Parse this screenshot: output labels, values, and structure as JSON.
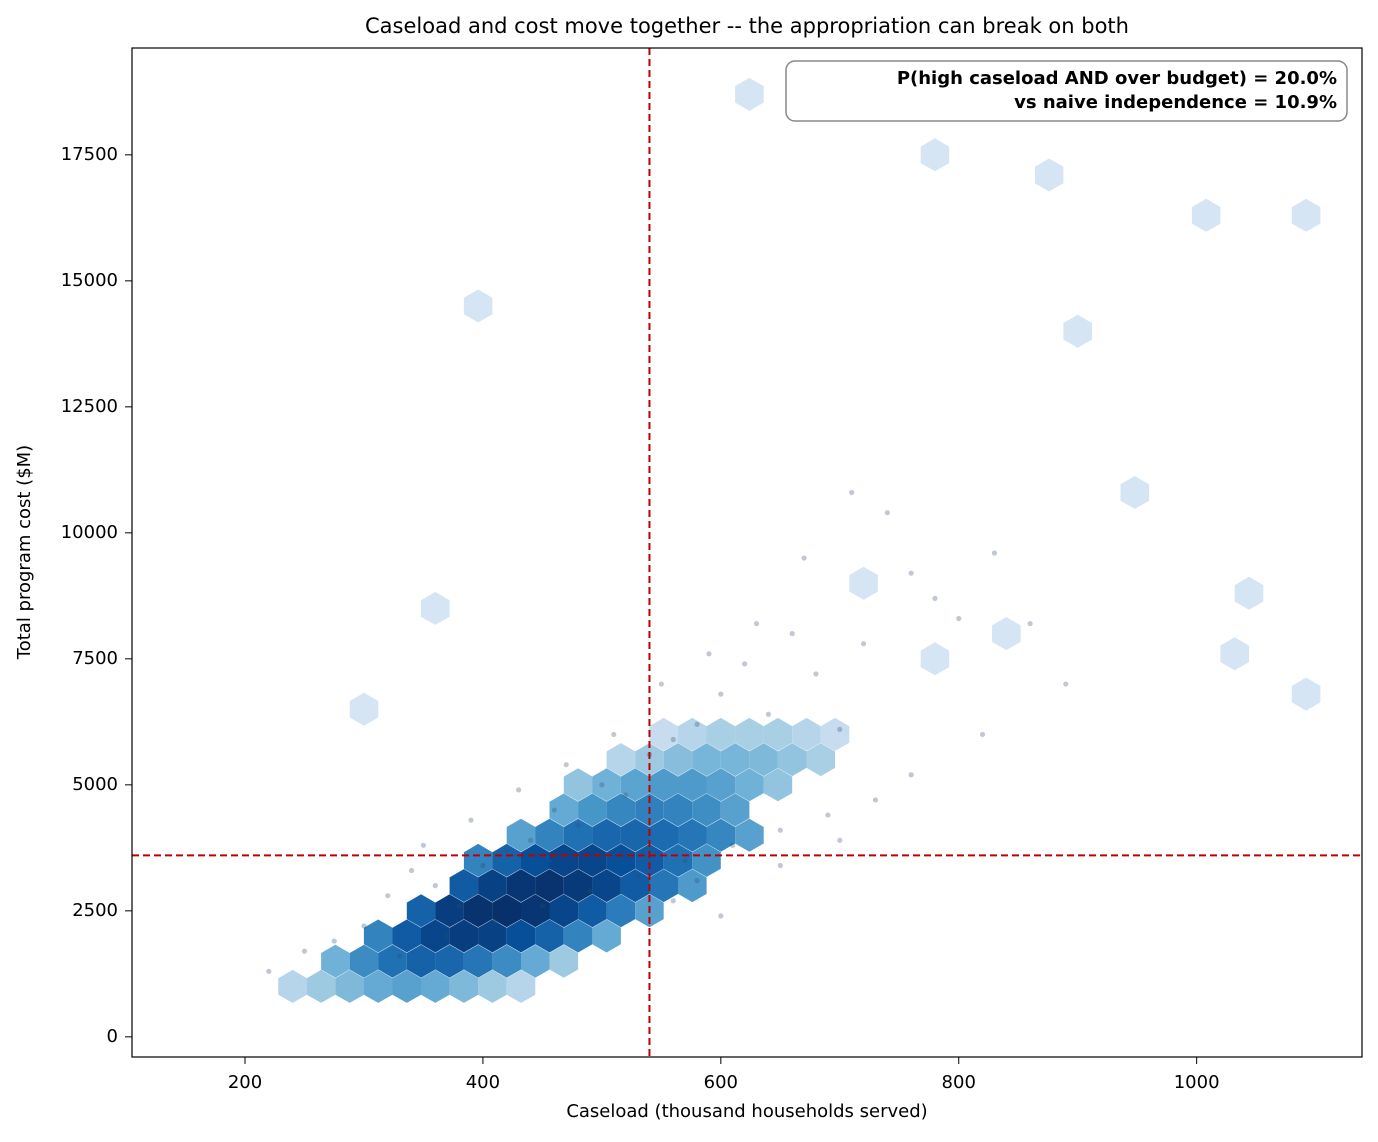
{
  "chart_data": {
    "type": "hexbin",
    "title": "Caseload and cost move together -- the appropriation can break on both",
    "x_label": "Caseload  (thousand households served)",
    "y_label": "Total program cost  ($M)",
    "annotation": [
      "P(high caseload AND over budget) = 20.0%",
      "vs naive independence = 10.9%"
    ],
    "xlim": [
      105,
      1139
    ],
    "ylim": [
      -400,
      19620
    ],
    "xticks": [
      200,
      400,
      600,
      800,
      1000
    ],
    "yticks": [
      0,
      2500,
      5000,
      7500,
      10000,
      12500,
      15000,
      17500
    ],
    "threshold_x": 540,
    "threshold_y": 3600,
    "threshold_color": "#c00000",
    "colormap": [
      "#f7fbff",
      "#deebf7",
      "#c6dbef",
      "#9ecae1",
      "#6baed6",
      "#4292c6",
      "#2171b5",
      "#08519c",
      "#08306b"
    ],
    "color_scale": "log",
    "hexbin": {
      "x": [
        240,
        264,
        288,
        312,
        336,
        360,
        384,
        408,
        432,
        276,
        300,
        324,
        348,
        372,
        396,
        420,
        444,
        468,
        312,
        336,
        360,
        384,
        408,
        432,
        456,
        480,
        504,
        348,
        372,
        396,
        420,
        444,
        468,
        492,
        516,
        540,
        384,
        408,
        432,
        456,
        480,
        504,
        528,
        552,
        576,
        396,
        420,
        444,
        468,
        492,
        516,
        540,
        564,
        588,
        432,
        456,
        480,
        504,
        528,
        552,
        576,
        600,
        624,
        468,
        492,
        516,
        540,
        564,
        588,
        612,
        480,
        504,
        528,
        552,
        576,
        600,
        624,
        648,
        516,
        540,
        564,
        588,
        612,
        636,
        660,
        684,
        552,
        576,
        600,
        624,
        648,
        672,
        696,
        624,
        780,
        1008,
        1092,
        876,
        396,
        900,
        1044,
        1092,
        948,
        1032,
        720,
        780,
        840,
        300,
        360
      ],
      "y": [
        1000,
        1000,
        1000,
        1000,
        1000,
        1000,
        1000,
        1000,
        1000,
        1500,
        1500,
        1500,
        1500,
        1500,
        1500,
        1500,
        1500,
        1500,
        2000,
        2000,
        2000,
        2000,
        2000,
        2000,
        2000,
        2000,
        2000,
        2500,
        2500,
        2500,
        2500,
        2500,
        2500,
        2500,
        2500,
        2500,
        3000,
        3000,
        3000,
        3000,
        3000,
        3000,
        3000,
        3000,
        3000,
        3500,
        3500,
        3500,
        3500,
        3500,
        3500,
        3500,
        3500,
        3500,
        4000,
        4000,
        4000,
        4000,
        4000,
        4000,
        4000,
        4000,
        4000,
        4500,
        4500,
        4500,
        4500,
        4500,
        4500,
        4500,
        5000,
        5000,
        5000,
        5000,
        5000,
        5000,
        5000,
        5000,
        5500,
        5500,
        5500,
        5500,
        5500,
        5500,
        5500,
        5500,
        6000,
        6000,
        6000,
        6000,
        6000,
        6000,
        6000,
        18700,
        17500,
        16300,
        16300,
        17100,
        14500,
        14000,
        8800,
        6800,
        10800,
        7600,
        9000,
        7500,
        8000,
        6500,
        8500
      ],
      "counts": [
        3,
        5,
        8,
        12,
        15,
        12,
        8,
        5,
        3,
        10,
        25,
        45,
        60,
        55,
        40,
        25,
        12,
        5,
        30,
        70,
        110,
        130,
        120,
        90,
        60,
        30,
        12,
        60,
        130,
        160,
        170,
        150,
        110,
        70,
        35,
        15,
        70,
        120,
        150,
        160,
        140,
        110,
        70,
        40,
        18,
        30,
        60,
        90,
        110,
        110,
        90,
        70,
        45,
        22,
        15,
        30,
        45,
        55,
        55,
        50,
        40,
        28,
        15,
        12,
        20,
        28,
        32,
        30,
        24,
        15,
        6,
        10,
        14,
        18,
        18,
        15,
        10,
        6,
        3,
        5,
        7,
        9,
        9,
        8,
        6,
        4,
        2,
        3,
        4,
        4,
        4,
        3,
        2,
        1,
        1,
        1,
        1,
        1,
        1,
        1,
        1,
        1,
        1,
        1,
        1,
        1,
        1,
        1,
        1
      ]
    },
    "scatter": {
      "color": "#2f4b6e",
      "x": [
        220,
        250,
        275,
        300,
        320,
        340,
        360,
        380,
        400,
        420,
        440,
        460,
        480,
        500,
        520,
        540,
        560,
        580,
        600,
        620,
        640,
        660,
        680,
        700,
        720,
        740,
        760,
        780,
        800,
        830,
        860,
        890,
        330,
        370,
        410,
        450,
        490,
        530,
        570,
        610,
        650,
        690,
        730,
        350,
        390,
        430,
        470,
        510,
        550,
        590,
        630,
        670,
        710,
        760,
        820,
        560,
        580,
        600,
        650,
        700
      ],
      "y": [
        1300,
        1700,
        1900,
        2200,
        2800,
        3300,
        3000,
        2600,
        3400,
        3700,
        3900,
        4500,
        4200,
        5000,
        4800,
        5600,
        5900,
        6200,
        6800,
        7400,
        6400,
        8000,
        7200,
        6100,
        7800,
        10400,
        9200,
        8700,
        8300,
        9600,
        8200,
        7000,
        1600,
        2000,
        2300,
        2600,
        2900,
        3200,
        3500,
        3800,
        4100,
        4400,
        4700,
        3800,
        4300,
        4900,
        5400,
        6000,
        7000,
        7600,
        8200,
        9500,
        10800,
        5200,
        6000,
        2700,
        3100,
        2400,
        3400,
        3900
      ]
    }
  }
}
